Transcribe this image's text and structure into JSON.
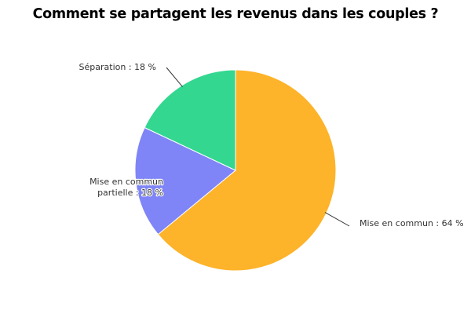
{
  "chart_data": {
    "type": "pie",
    "title": "Comment se partagent les revenus dans les couples ?",
    "slices": [
      {
        "label": "Mise en commun : 64 %",
        "value": 64,
        "color": "#fdb32a"
      },
      {
        "label": "Mise en commun partielle : 18 %",
        "value": 18,
        "color": "#7f85f6"
      },
      {
        "label": "Séparation : 18 %",
        "value": 18,
        "color": "#33d790"
      }
    ],
    "start": "12 o'clock",
    "direction": "clockwise"
  }
}
